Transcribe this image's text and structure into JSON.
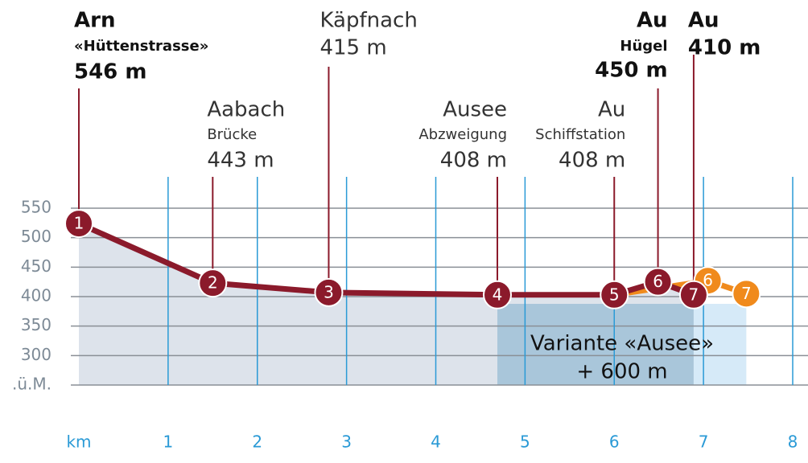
{
  "chart_data": {
    "type": "line",
    "xlim": [
      0,
      8
    ],
    "ylim": [
      250,
      550
    ],
    "xticks": [
      {
        "value": 0,
        "label": "km"
      },
      1,
      2,
      3,
      4,
      5,
      6,
      7,
      8
    ],
    "yticks": [
      {
        "value": 250,
        "label": ".ü.M."
      },
      300,
      350,
      400,
      450,
      500,
      550
    ],
    "grid": true,
    "series": [
      {
        "color": "#8b1a2b",
        "x": [
          0,
          1.5,
          2.8,
          4.69,
          6.0,
          6.49,
          6.89
        ],
        "values": [
          524,
          423,
          407,
          403,
          403,
          425,
          403
        ],
        "point_labels": [
          "1",
          "2",
          "3",
          "4",
          "5",
          "6",
          "7"
        ]
      },
      {
        "color": "#f08a1c",
        "x": [
          6.0,
          7.05,
          7.48
        ],
        "values": [
          403,
          427,
          405
        ],
        "point_labels": [
          null,
          "6",
          "7"
        ]
      }
    ],
    "stations": [
      {
        "name": "Arn",
        "sub": "«Hüttenstrasse»",
        "elevation": "546 m"
      },
      {
        "name": "Aabach",
        "sub": "Brücke",
        "elevation": "443 m"
      },
      {
        "name": "Käpfnach",
        "elevation": "415 m"
      },
      {
        "name": "Ausee",
        "sub": "Abzweigung",
        "elevation": "408 m"
      },
      {
        "name": "Au",
        "sub": "Schiffstation",
        "elevation": "408 m"
      },
      {
        "name": "Au",
        "sub": "Hügel",
        "elevation": "450 m"
      },
      {
        "name": "Au",
        "elevation": "410 m"
      }
    ],
    "variant": {
      "title": "Variante «Ausee»",
      "extra": "+ 600 m"
    }
  }
}
